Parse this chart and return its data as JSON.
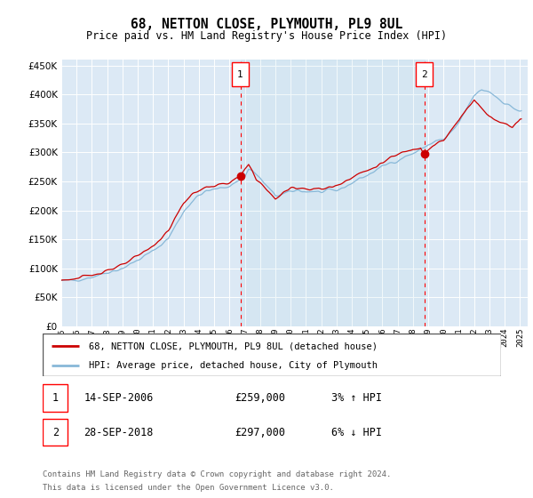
{
  "title": "68, NETTON CLOSE, PLYMOUTH, PL9 8UL",
  "subtitle": "Price paid vs. HM Land Registry's House Price Index (HPI)",
  "plot_bg_color": "#dce9f5",
  "yticks": [
    0,
    50000,
    100000,
    150000,
    200000,
    250000,
    300000,
    350000,
    400000,
    450000
  ],
  "ylim": [
    0,
    460000
  ],
  "xlim_start": 1995.0,
  "xlim_end": 2025.5,
  "transaction1": {
    "date": 2006.71,
    "price": 259000,
    "label": "1",
    "date_str": "14-SEP-2006",
    "price_str": "£259,000",
    "note": "3% ↑ HPI"
  },
  "transaction2": {
    "date": 2018.74,
    "price": 297000,
    "label": "2",
    "date_str": "28-SEP-2018",
    "price_str": "£297,000",
    "note": "6% ↓ HPI"
  },
  "legend_line1": "68, NETTON CLOSE, PLYMOUTH, PL9 8UL (detached house)",
  "legend_line2": "HPI: Average price, detached house, City of Plymouth",
  "footer1": "Contains HM Land Registry data © Crown copyright and database right 2024.",
  "footer2": "This data is licensed under the Open Government Licence v3.0.",
  "red_color": "#cc0000",
  "blue_color": "#88b8d8"
}
